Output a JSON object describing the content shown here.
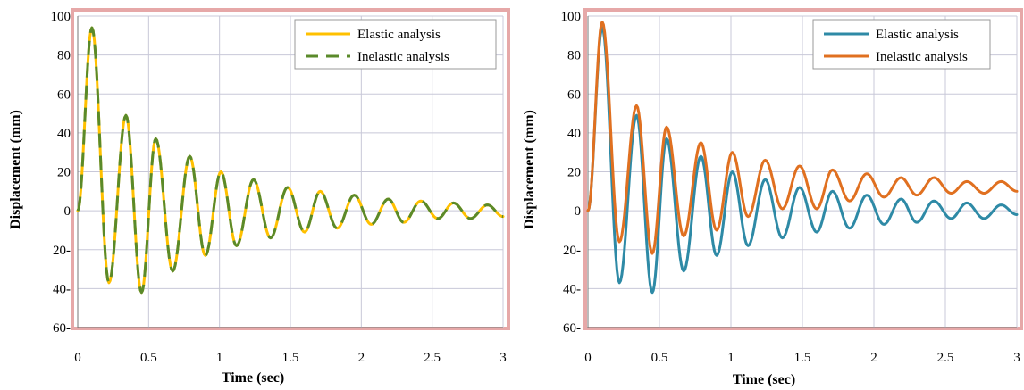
{
  "chart_data": [
    {
      "type": "line",
      "title": "",
      "xlabel": "Time  (sec)",
      "ylabel": "Displacement   (mm)",
      "xlim": [
        0,
        3
      ],
      "ylim": [
        -60,
        100
      ],
      "x_ticks": [
        "0",
        "0.5",
        "1",
        "1.5",
        "2",
        "2.5",
        "3"
      ],
      "y_ticks": [
        "100",
        "80",
        "60",
        "40",
        "20",
        "0",
        "20-",
        "40-",
        "60-"
      ],
      "grid": true,
      "legend_position": "top-right",
      "frame_color": "#e6a8a8",
      "series": [
        {
          "name": "Elastic analysis",
          "color": "#ffc000",
          "dash": "solid",
          "peaks": [
            [
              0,
              0
            ],
            [
              0.1,
              94
            ],
            [
              0.22,
              -37
            ],
            [
              0.34,
              49
            ],
            [
              0.45,
              -42
            ],
            [
              0.55,
              37
            ],
            [
              0.67,
              -31
            ],
            [
              0.79,
              28
            ],
            [
              0.9,
              -23
            ],
            [
              1.01,
              20
            ],
            [
              1.12,
              -18
            ],
            [
              1.24,
              16
            ],
            [
              1.36,
              -14
            ],
            [
              1.48,
              12
            ],
            [
              1.6,
              -11
            ],
            [
              1.71,
              10
            ],
            [
              1.83,
              -9
            ],
            [
              1.95,
              8
            ],
            [
              2.07,
              -7
            ],
            [
              2.19,
              6
            ],
            [
              2.3,
              -6
            ],
            [
              2.42,
              5
            ],
            [
              2.54,
              -4
            ],
            [
              2.65,
              4
            ],
            [
              2.77,
              -4
            ],
            [
              2.89,
              3
            ],
            [
              3.0,
              -3
            ]
          ]
        },
        {
          "name": "Inelastic analysis",
          "color": "#5a8a2a",
          "dash": "dashed",
          "peaks": [
            [
              0,
              0
            ],
            [
              0.1,
              94
            ],
            [
              0.22,
              -37
            ],
            [
              0.34,
              49
            ],
            [
              0.45,
              -42
            ],
            [
              0.55,
              37
            ],
            [
              0.67,
              -31
            ],
            [
              0.79,
              28
            ],
            [
              0.9,
              -23
            ],
            [
              1.01,
              20
            ],
            [
              1.12,
              -18
            ],
            [
              1.24,
              16
            ],
            [
              1.36,
              -14
            ],
            [
              1.48,
              12
            ],
            [
              1.6,
              -11
            ],
            [
              1.71,
              10
            ],
            [
              1.83,
              -9
            ],
            [
              1.95,
              8
            ],
            [
              2.07,
              -7
            ],
            [
              2.19,
              6
            ],
            [
              2.3,
              -6
            ],
            [
              2.42,
              5
            ],
            [
              2.54,
              -4
            ],
            [
              2.65,
              4
            ],
            [
              2.77,
              -4
            ],
            [
              2.89,
              3
            ],
            [
              3.0,
              -3
            ]
          ]
        }
      ]
    },
    {
      "type": "line",
      "title": "",
      "xlabel": "Time  (sec)",
      "ylabel": "Displacement   (mm)",
      "xlim": [
        0,
        3
      ],
      "ylim": [
        -60,
        100
      ],
      "x_ticks": [
        "0",
        "0.5",
        "1",
        "1.5",
        "2",
        "2.5",
        "3"
      ],
      "y_ticks": [
        "100",
        "80",
        "60",
        "40",
        "20",
        "0",
        "20-",
        "40-",
        "60-"
      ],
      "grid": true,
      "legend_position": "top-right",
      "frame_color": "#e6a8a8",
      "series": [
        {
          "name": "Elastic analysis",
          "color": "#2e8aa6",
          "dash": "solid",
          "peaks": [
            [
              0,
              0
            ],
            [
              0.1,
              94
            ],
            [
              0.22,
              -37
            ],
            [
              0.34,
              49
            ],
            [
              0.45,
              -42
            ],
            [
              0.55,
              37
            ],
            [
              0.67,
              -31
            ],
            [
              0.79,
              28
            ],
            [
              0.9,
              -23
            ],
            [
              1.01,
              20
            ],
            [
              1.12,
              -18
            ],
            [
              1.24,
              16
            ],
            [
              1.36,
              -14
            ],
            [
              1.48,
              12
            ],
            [
              1.6,
              -11
            ],
            [
              1.71,
              10
            ],
            [
              1.83,
              -9
            ],
            [
              1.95,
              8
            ],
            [
              2.07,
              -7
            ],
            [
              2.19,
              6
            ],
            [
              2.3,
              -6
            ],
            [
              2.42,
              5
            ],
            [
              2.54,
              -4
            ],
            [
              2.65,
              4
            ],
            [
              2.77,
              -4
            ],
            [
              2.89,
              3
            ],
            [
              3.0,
              -2
            ]
          ]
        },
        {
          "name": "Inelastic analysis",
          "color": "#e07020",
          "dash": "solid",
          "peaks": [
            [
              0,
              0
            ],
            [
              0.1,
              97
            ],
            [
              0.22,
              -16
            ],
            [
              0.34,
              54
            ],
            [
              0.45,
              -22
            ],
            [
              0.55,
              43
            ],
            [
              0.67,
              -13
            ],
            [
              0.79,
              35
            ],
            [
              0.9,
              -10
            ],
            [
              1.01,
              30
            ],
            [
              1.12,
              -3
            ],
            [
              1.24,
              26
            ],
            [
              1.36,
              1
            ],
            [
              1.48,
              23
            ],
            [
              1.6,
              1
            ],
            [
              1.71,
              21
            ],
            [
              1.83,
              5
            ],
            [
              1.95,
              19
            ],
            [
              2.07,
              7
            ],
            [
              2.19,
              17
            ],
            [
              2.3,
              8
            ],
            [
              2.42,
              17
            ],
            [
              2.54,
              9
            ],
            [
              2.65,
              15
            ],
            [
              2.77,
              9
            ],
            [
              2.89,
              15
            ],
            [
              3.0,
              10
            ]
          ]
        }
      ]
    }
  ]
}
